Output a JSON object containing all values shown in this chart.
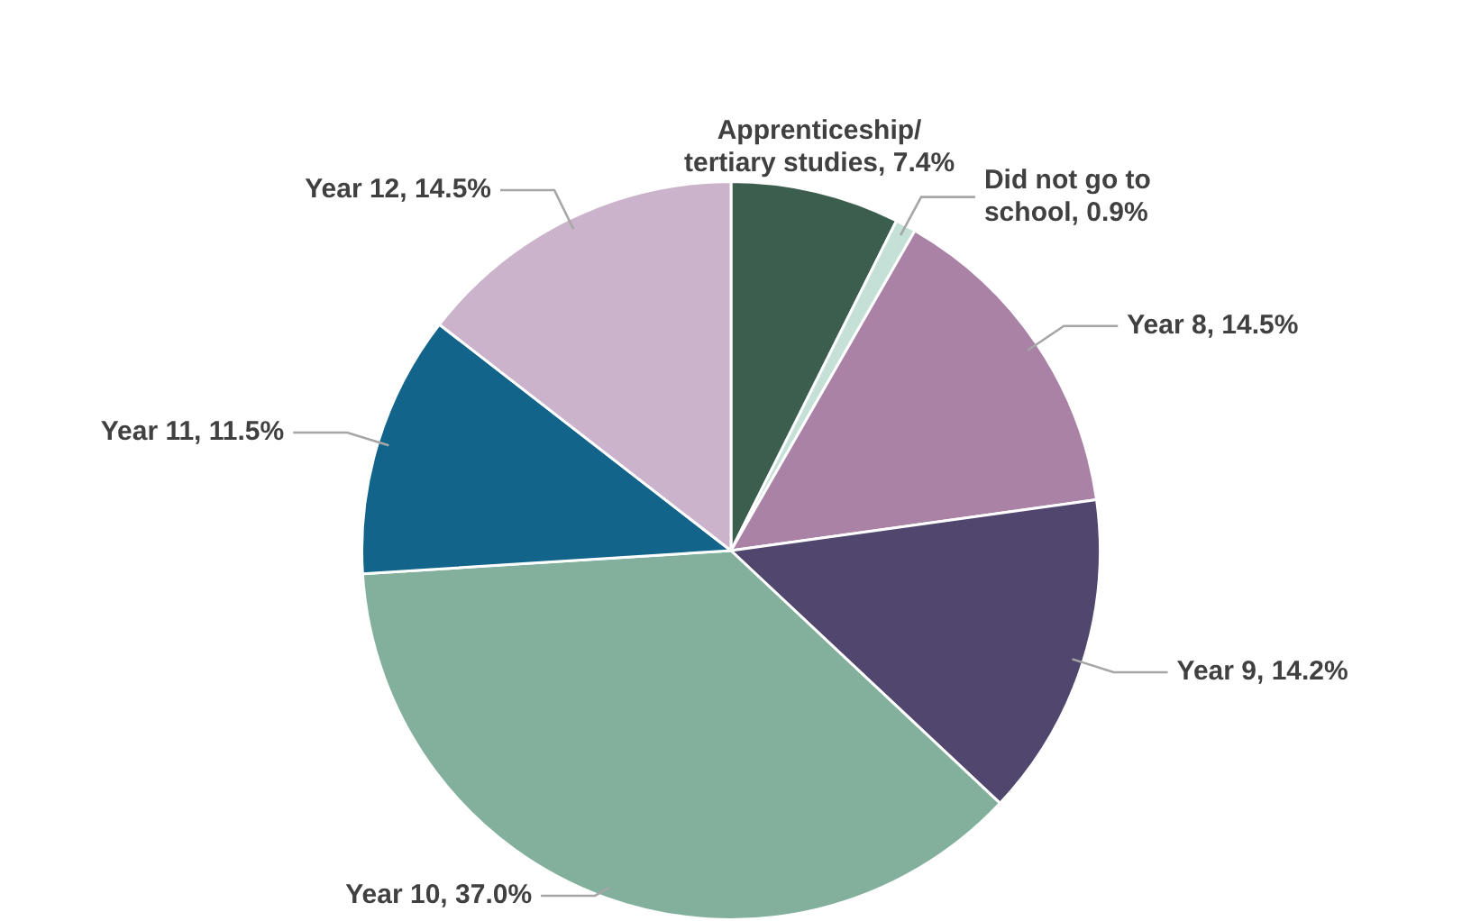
{
  "chart_data": {
    "type": "pie",
    "categories": [
      "Apprenticeship/ tertiary studies",
      "Did not go to school",
      "Year 8",
      "Year 9",
      "Year 10",
      "Year 11",
      "Year 12"
    ],
    "values": [
      7.4,
      0.9,
      14.5,
      14.2,
      37.0,
      11.5,
      14.5
    ],
    "value_labels": [
      "7.4%",
      "0.9%",
      "14.5%",
      "14.2%",
      "37.0%",
      "11.5%",
      "14.5%"
    ],
    "colors": [
      "#3b5e4f",
      "#c5e0d6",
      "#a982a6",
      "#50466e",
      "#83b09c",
      "#12648a",
      "#cbb3cb"
    ]
  }
}
